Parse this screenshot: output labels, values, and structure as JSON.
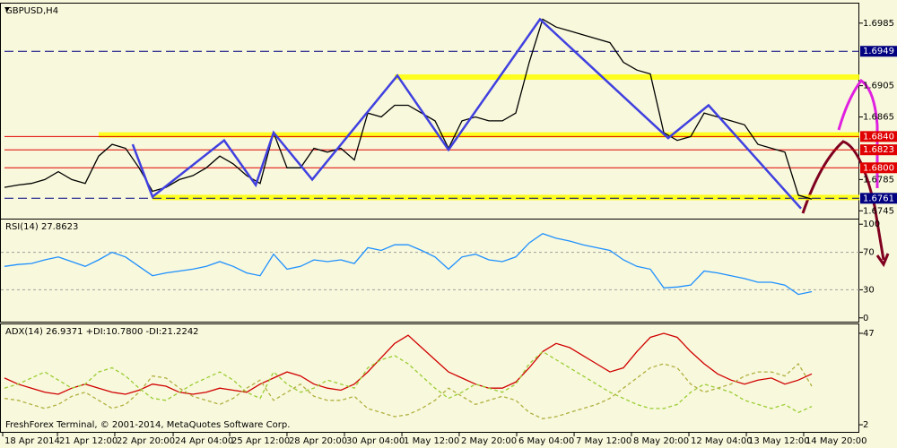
{
  "footer": "FreshForex Terminal, © 2001-2014, MetaQuotes Software Corp.",
  "chart_data": [
    {
      "type": "line",
      "title": "GBPUSD,H4",
      "color": "#000000",
      "values": [
        1.6775,
        1.6778,
        1.678,
        1.6785,
        1.6795,
        1.6785,
        1.678,
        1.6815,
        1.683,
        1.6825,
        1.68,
        1.677,
        1.6775,
        1.6785,
        1.679,
        1.68,
        1.6815,
        1.6805,
        1.679,
        1.678,
        1.6845,
        1.68,
        1.68,
        1.6825,
        1.682,
        1.6825,
        1.681,
        1.687,
        1.6865,
        1.688,
        1.688,
        1.687,
        1.686,
        1.6825,
        1.686,
        1.6865,
        1.686,
        1.686,
        1.687,
        1.6935,
        1.699,
        1.698,
        1.6975,
        1.697,
        1.6965,
        1.696,
        1.6935,
        1.6925,
        1.692,
        1.6845,
        1.6835,
        1.684,
        1.687,
        1.6865,
        1.686,
        1.6855,
        1.683,
        1.6825,
        1.682,
        1.6765,
        1.676
      ],
      "ylim": [
        1.6735,
        1.701
      ],
      "yticks": [
        1.6745,
        1.6785,
        1.6865,
        1.6905,
        1.6985
      ],
      "xticks": [
        {
          "value": 0,
          "label": "18 Apr 2014"
        },
        {
          "value": 4.07,
          "label": "21 Apr 12:00"
        },
        {
          "value": 8.33,
          "label": "22 Apr 20:00"
        },
        {
          "value": 12.67,
          "label": "24 Apr 04:00"
        },
        {
          "value": 16.87,
          "label": "25 Apr 12:00"
        },
        {
          "value": 21.13,
          "label": "28 Apr 20:00"
        },
        {
          "value": 25.4,
          "label": "30 Apr 04:00"
        },
        {
          "value": 29.67,
          "label": "1 May 12:00"
        },
        {
          "value": 33.93,
          "label": "2 May 20:00"
        },
        {
          "value": 38.2,
          "label": "6 May 04:00"
        },
        {
          "value": 42.47,
          "label": "7 May 12:00"
        },
        {
          "value": 46.73,
          "label": "8 May 20:00"
        },
        {
          "value": 51,
          "label": "12 May 04:00"
        },
        {
          "value": 55.27,
          "label": "13 May 12:00"
        },
        {
          "value": 59.53,
          "label": "14 May 20:00"
        }
      ],
      "levels": [
        {
          "value": 1.6916,
          "color": "#ffff00",
          "style": "band",
          "from": 29
        },
        {
          "value": 1.6842,
          "color": "#ffff00",
          "style": "band",
          "from": 7
        },
        {
          "value": 1.6762,
          "color": "#ffff00",
          "style": "band",
          "from": 11
        },
        {
          "value": 1.6949,
          "color": "#000080",
          "style": "dashed",
          "from": 0,
          "label": "1.6949"
        },
        {
          "value": 1.684,
          "color": "#e00000",
          "style": "line",
          "from": 0,
          "label": "1.6840"
        },
        {
          "value": 1.6823,
          "color": "#e00000",
          "style": "line",
          "from": 0,
          "label": "1.6823"
        },
        {
          "value": 1.68,
          "color": "#e00000",
          "style": "line",
          "from": 0,
          "label": "1.6800"
        },
        {
          "value": 1.6761,
          "color": "#000080",
          "style": "dashed",
          "from": 0,
          "label": "1.6761"
        }
      ],
      "zigzag": {
        "color": "#4040e0",
        "x": [
          9.53,
          11,
          16.33,
          18.67,
          20,
          22.87,
          29.2,
          33,
          39.8,
          49.33,
          52.33,
          59.2
        ],
        "values": [
          1.683,
          1.6763,
          1.6835,
          1.6778,
          1.6845,
          1.6785,
          1.6918,
          1.6823,
          1.699,
          1.6838,
          1.688,
          1.6748
        ]
      }
    },
    {
      "type": "line",
      "title": "RSI(14) 27.8623",
      "color": "#1e90ff",
      "values": [
        55,
        57,
        58,
        62,
        65,
        60,
        55,
        62,
        70,
        65,
        55,
        45,
        48,
        50,
        52,
        55,
        60,
        55,
        48,
        45,
        68,
        52,
        55,
        62,
        60,
        62,
        58,
        75,
        72,
        78,
        78,
        72,
        65,
        52,
        65,
        68,
        62,
        60,
        65,
        80,
        90,
        85,
        82,
        78,
        75,
        72,
        62,
        55,
        52,
        32,
        33,
        35,
        50,
        48,
        45,
        42,
        38,
        38,
        35,
        25,
        28
      ],
      "ylim": [
        -5,
        105
      ],
      "yticks": [
        0,
        30,
        70,
        100
      ],
      "levels": [
        30,
        70
      ]
    },
    {
      "type": "line",
      "title": "ADX(14) 26.9371 +DI:10.7800 -DI:21.2242",
      "ylim": [
        -1.5,
        51.4
      ],
      "yticks": [
        2,
        47
      ],
      "series": [
        {
          "color": "#d00000",
          "style": "solid",
          "values": [
            25,
            22,
            20,
            18,
            17,
            20,
            22,
            20,
            18,
            17,
            19,
            22,
            21,
            18,
            17,
            18,
            20,
            19,
            18,
            22,
            25,
            28,
            26,
            22,
            20,
            19,
            22,
            28,
            35,
            42,
            46,
            40,
            34,
            28,
            25,
            22,
            20,
            20,
            23,
            30,
            38,
            42,
            40,
            36,
            32,
            28,
            30,
            38,
            45,
            47,
            45,
            38,
            32,
            27,
            24,
            22,
            24,
            25,
            22,
            24,
            27
          ]
        },
        {
          "color": "#9acd32",
          "style": "dashed",
          "values": [
            20,
            22,
            25,
            28,
            24,
            20,
            22,
            28,
            30,
            26,
            20,
            15,
            14,
            18,
            22,
            25,
            28,
            24,
            18,
            15,
            28,
            22,
            18,
            20,
            24,
            22,
            20,
            30,
            34,
            36,
            32,
            26,
            20,
            15,
            18,
            22,
            20,
            18,
            22,
            32,
            38,
            34,
            30,
            26,
            22,
            18,
            15,
            12,
            10,
            10,
            12,
            18,
            22,
            20,
            18,
            14,
            12,
            10,
            12,
            8,
            11
          ]
        },
        {
          "color": "#b0b040",
          "style": "dashed",
          "values": [
            15,
            14,
            12,
            10,
            12,
            16,
            18,
            14,
            10,
            12,
            18,
            26,
            25,
            20,
            16,
            14,
            12,
            15,
            20,
            24,
            14,
            18,
            22,
            16,
            14,
            14,
            16,
            10,
            8,
            6,
            7,
            10,
            14,
            20,
            16,
            12,
            14,
            16,
            14,
            8,
            5,
            6,
            8,
            10,
            12,
            15,
            20,
            25,
            30,
            32,
            30,
            22,
            18,
            20,
            22,
            26,
            28,
            28,
            26,
            32,
            21
          ]
        }
      ]
    }
  ]
}
